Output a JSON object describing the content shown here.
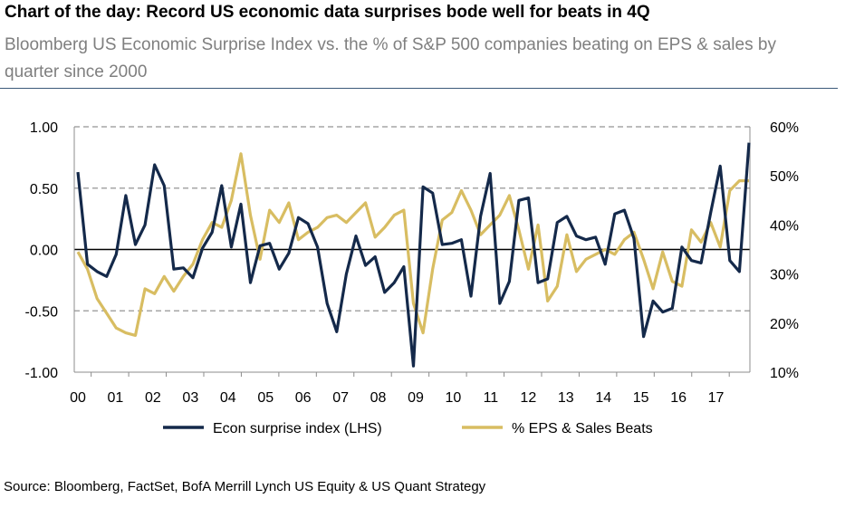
{
  "title": "Chart of the day: Record US economic data surprises bode well for beats in 4Q",
  "subtitle": "Bloomberg US Economic Surprise Index vs. the % of S&P 500 companies beating on EPS & sales by quarter since 2000",
  "source": "Source: Bloomberg, FactSet, BofA Merrill Lynch US Equity & US Quant Strategy",
  "colors": {
    "surprise": "#14294a",
    "beats": "#d8bd62",
    "axis": "#000000",
    "grid": "#a6a6a6"
  },
  "chart_data": {
    "type": "line",
    "x_labels": [
      "00",
      "01",
      "02",
      "03",
      "04",
      "05",
      "06",
      "07",
      "08",
      "09",
      "10",
      "11",
      "12",
      "13",
      "14",
      "15",
      "16",
      "17"
    ],
    "left_axis": {
      "ticks": [
        "1.00",
        "0.50",
        "0.00",
        "-0.50",
        "-1.00"
      ],
      "ylim": [
        -1.0,
        1.0
      ]
    },
    "right_axis": {
      "ticks": [
        "60%",
        "50%",
        "40%",
        "30%",
        "20%",
        "10%"
      ],
      "ylim": [
        10,
        60
      ]
    },
    "grid": "dashed at 0.50, -0.50 and 1.00; solid zero line",
    "legend_position": "bottom",
    "series": [
      {
        "name": "Econ surprise index (LHS)",
        "axis": "left",
        "values": [
          0.63,
          -0.12,
          -0.18,
          -0.22,
          -0.04,
          0.44,
          0.04,
          0.2,
          0.69,
          0.52,
          -0.16,
          -0.15,
          -0.23,
          0.01,
          0.14,
          0.52,
          0.02,
          0.37,
          -0.27,
          0.03,
          0.05,
          -0.16,
          -0.03,
          0.26,
          0.21,
          0.02,
          -0.44,
          -0.67,
          -0.2,
          0.11,
          -0.13,
          -0.06,
          -0.35,
          -0.27,
          -0.14,
          -0.95,
          0.51,
          0.46,
          0.04,
          0.05,
          0.08,
          -0.38,
          0.27,
          0.62,
          -0.44,
          -0.26,
          0.4,
          0.42,
          -0.27,
          -0.24,
          0.22,
          0.27,
          0.11,
          0.08,
          0.1,
          -0.12,
          0.29,
          0.32,
          0.09,
          -0.71,
          -0.42,
          -0.51,
          -0.48,
          0.02,
          -0.09,
          -0.11,
          0.3,
          0.68,
          -0.09,
          -0.18,
          0.87
        ]
      },
      {
        "name": "% EPS & Sales Beats",
        "axis": "right",
        "values": [
          34.5,
          31,
          25,
          22,
          19,
          18,
          17.5,
          27,
          26,
          29.5,
          26.5,
          29.5,
          32,
          37,
          40.5,
          39.5,
          45,
          54.5,
          42,
          33,
          43,
          40.5,
          44.5,
          37,
          38.5,
          39.5,
          41.5,
          42,
          40.5,
          42.5,
          44.5,
          37.5,
          39.5,
          42,
          43,
          24,
          18,
          31,
          41,
          42.5,
          47,
          43,
          38,
          40,
          42,
          46,
          39,
          31,
          40,
          24.5,
          27.5,
          38,
          30.5,
          33,
          34,
          35,
          34,
          37,
          38.5,
          33,
          27,
          34.5,
          28.5,
          27.5,
          39,
          36.5,
          40.5,
          35.5,
          47,
          49,
          49
        ]
      }
    ]
  },
  "legend": {
    "surprise_label": "Econ surprise index (LHS)",
    "beats_label": "% EPS & Sales Beats"
  }
}
